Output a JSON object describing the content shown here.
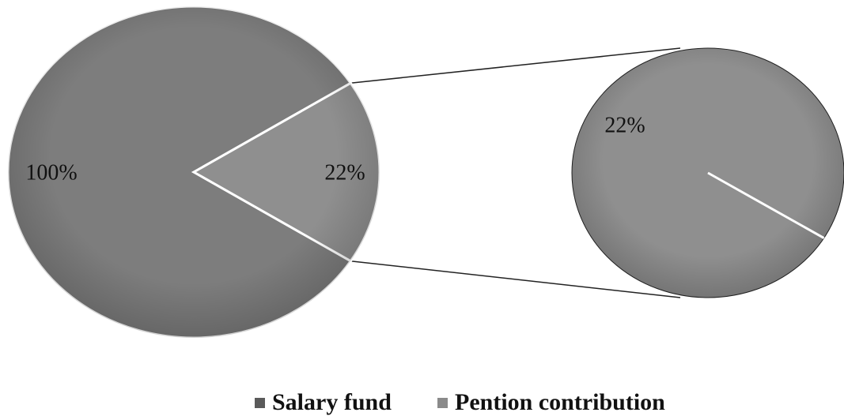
{
  "chart_data": {
    "type": "pie-of-pie",
    "categories": [
      "Salary fund",
      "Pention contribution"
    ],
    "values": [
      100,
      22
    ],
    "value_labels": [
      "100%",
      "22%"
    ],
    "colors": [
      "#7d7d7d",
      "#8f8f8f"
    ],
    "legend_colors": [
      "#5a5a5a",
      "#8a8a8a"
    ],
    "secondary": {
      "values": [
        22
      ],
      "value_labels": [
        "22%"
      ]
    },
    "legend": "bottom"
  }
}
